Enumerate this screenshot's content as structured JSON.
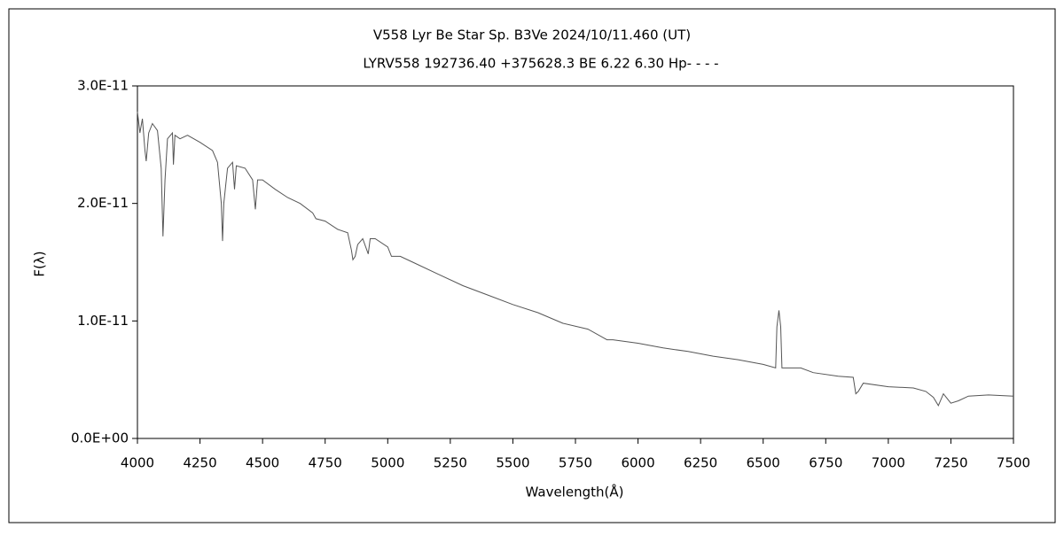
{
  "chart_data": {
    "type": "line",
    "title": "V558 Lyr   Be Star  Sp. B3Ve   2024/10/11.460 (UT)",
    "subtitle": "LYRV558 192736.40 +375628.3 BE 6.22 6.30 Hp- - - -",
    "xlabel": "Wavelength(Å)",
    "ylabel": "F(λ)",
    "xlim": [
      4000,
      7500
    ],
    "xticks": [
      4000,
      4250,
      4500,
      4750,
      5000,
      5250,
      5500,
      5750,
      6000,
      6250,
      6500,
      6750,
      7000,
      7250,
      7500
    ],
    "ylim": [
      0,
      3e-11
    ],
    "yticks": [
      {
        "value": 0,
        "label": "0.0E+00"
      },
      {
        "value": 1e-11,
        "label": "1.0E-11"
      },
      {
        "value": 2e-11,
        "label": "2.0E-11"
      },
      {
        "value": 3e-11,
        "label": "3.0E-11"
      }
    ],
    "series": [
      {
        "color": "#555555",
        "x": [
          4000,
          4010,
          4020,
          4030,
          4035,
          4045,
          4060,
          4080,
          4095,
          4102,
          4110,
          4120,
          4140,
          4144,
          4150,
          4170,
          4200,
          4250,
          4300,
          4320,
          4335,
          4340,
          4345,
          4360,
          4380,
          4388,
          4395,
          4430,
          4460,
          4471,
          4480,
          4500,
          4550,
          4600,
          4650,
          4700,
          4713,
          4750,
          4800,
          4840,
          4855,
          4861,
          4870,
          4880,
          4900,
          4922,
          4930,
          4950,
          5000,
          5015,
          5050,
          5100,
          5200,
          5300,
          5400,
          5500,
          5600,
          5700,
          5800,
          5876,
          5900,
          6000,
          6100,
          6200,
          6300,
          6400,
          6500,
          6550,
          6555,
          6563,
          6570,
          6575,
          6650,
          6700,
          6800,
          6860,
          6870,
          6880,
          6900,
          7000,
          7100,
          7150,
          7180,
          7200,
          7220,
          7250,
          7280,
          7320,
          7400,
          7500
        ],
        "values": [
          2.78e-11,
          2.6e-11,
          2.72e-11,
          2.45e-11,
          2.36e-11,
          2.6e-11,
          2.68e-11,
          2.62e-11,
          2.3e-11,
          1.72e-11,
          2.2e-11,
          2.55e-11,
          2.6e-11,
          2.33e-11,
          2.58e-11,
          2.55e-11,
          2.58e-11,
          2.52e-11,
          2.45e-11,
          2.35e-11,
          2e-11,
          1.68e-11,
          2e-11,
          2.3e-11,
          2.35e-11,
          2.12e-11,
          2.32e-11,
          2.3e-11,
          2.2e-11,
          1.95e-11,
          2.2e-11,
          2.2e-11,
          2.12e-11,
          2.05e-11,
          2e-11,
          1.92e-11,
          1.87e-11,
          1.85e-11,
          1.78e-11,
          1.75e-11,
          1.6e-11,
          1.52e-11,
          1.55e-11,
          1.65e-11,
          1.7e-11,
          1.57e-11,
          1.7e-11,
          1.7e-11,
          1.63e-11,
          1.55e-11,
          1.55e-11,
          1.5e-11,
          1.4e-11,
          1.3e-11,
          1.22e-11,
          1.14e-11,
          1.07e-11,
          9.8e-12,
          9.3e-12,
          8.4e-12,
          8.4e-12,
          8.1e-12,
          7.7e-12,
          7.4e-12,
          7e-12,
          6.7e-12,
          6.3e-12,
          6e-12,
          9.5e-12,
          1.09e-11,
          9.5e-12,
          6e-12,
          6e-12,
          5.6e-12,
          5.3e-12,
          5.2e-12,
          3.8e-12,
          4e-12,
          4.7e-12,
          4.4e-12,
          4.3e-12,
          4e-12,
          3.5e-12,
          2.8e-12,
          3.8e-12,
          3e-12,
          3.2e-12,
          3.6e-12,
          3.7e-12,
          3.6e-12
        ]
      }
    ]
  }
}
